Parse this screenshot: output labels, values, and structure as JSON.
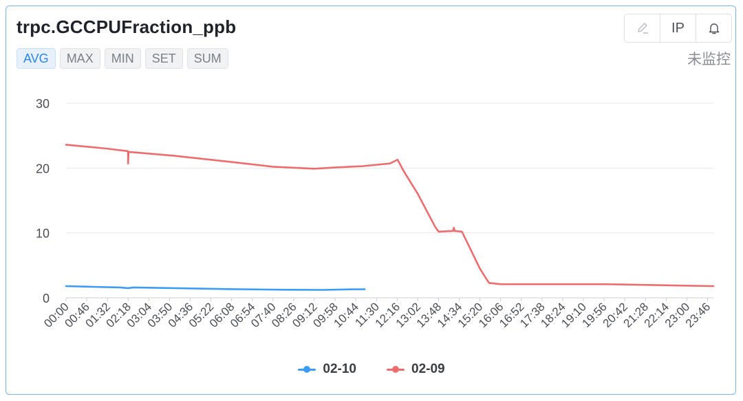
{
  "header": {
    "title": "trpc.GCCPUFraction_ppb",
    "agg_tabs": [
      "AVG",
      "MAX",
      "MIN",
      "SET",
      "SUM"
    ],
    "active_tab": "AVG",
    "tools": {
      "edit_icon": "pencil-icon",
      "ip_label": "IP",
      "alert_icon": "bell-icon"
    },
    "monitor_status": "未监控"
  },
  "colors": {
    "series_0210": "#3b9cf5",
    "series_0209": "#ee6b6e",
    "accent": "#2b86e8",
    "grid": "#e6e6e6"
  },
  "chart_data": {
    "type": "line",
    "title": "",
    "xlabel": "",
    "ylabel": "",
    "ylim": [
      0,
      30
    ],
    "yticks": [
      0,
      10,
      20,
      30
    ],
    "grid": true,
    "legend_position": "bottom",
    "x_ticks": [
      "00:00",
      "00:46",
      "01:32",
      "02:18",
      "03:04",
      "03:50",
      "04:36",
      "05:22",
      "06:08",
      "06:54",
      "07:40",
      "08:26",
      "09:12",
      "09:58",
      "10:44",
      "11:30",
      "12:16",
      "13:02",
      "13:48",
      "14:34",
      "15:20",
      "16:06",
      "16:52",
      "17:38",
      "18:24",
      "19:10",
      "19:56",
      "20:42",
      "21:28",
      "22:14",
      "23:00",
      "23:46"
    ],
    "series": [
      {
        "name": "02-10",
        "color": "#3b9cf5",
        "points": [
          [
            "00:00",
            1.8
          ],
          [
            "01:00",
            1.7
          ],
          [
            "02:00",
            1.6
          ],
          [
            "02:18",
            1.5
          ],
          [
            "02:30",
            1.6
          ],
          [
            "04:00",
            1.5
          ],
          [
            "06:00",
            1.35
          ],
          [
            "08:00",
            1.25
          ],
          [
            "09:30",
            1.22
          ],
          [
            "10:30",
            1.3
          ],
          [
            "11:04",
            1.32
          ]
        ]
      },
      {
        "name": "02-09",
        "color": "#ee6b6e",
        "points": [
          [
            "00:00",
            23.6
          ],
          [
            "01:30",
            23.0
          ],
          [
            "02:18",
            22.6
          ],
          [
            "02:18",
            20.7
          ],
          [
            "02:19",
            22.5
          ],
          [
            "04:00",
            21.9
          ],
          [
            "06:00",
            21.0
          ],
          [
            "07:40",
            20.2
          ],
          [
            "09:12",
            19.9
          ],
          [
            "10:00",
            20.1
          ],
          [
            "11:00",
            20.3
          ],
          [
            "12:00",
            20.7
          ],
          [
            "12:17",
            21.3
          ],
          [
            "12:30",
            19.6
          ],
          [
            "13:02",
            16.0
          ],
          [
            "13:40",
            11.0
          ],
          [
            "13:48",
            10.2
          ],
          [
            "14:20",
            10.3
          ],
          [
            "14:22",
            10.8
          ],
          [
            "14:24",
            10.3
          ],
          [
            "14:40",
            10.2
          ],
          [
            "15:20",
            4.5
          ],
          [
            "15:40",
            2.3
          ],
          [
            "16:06",
            2.1
          ],
          [
            "20:00",
            2.1
          ],
          [
            "23:59",
            1.8
          ]
        ]
      }
    ]
  }
}
